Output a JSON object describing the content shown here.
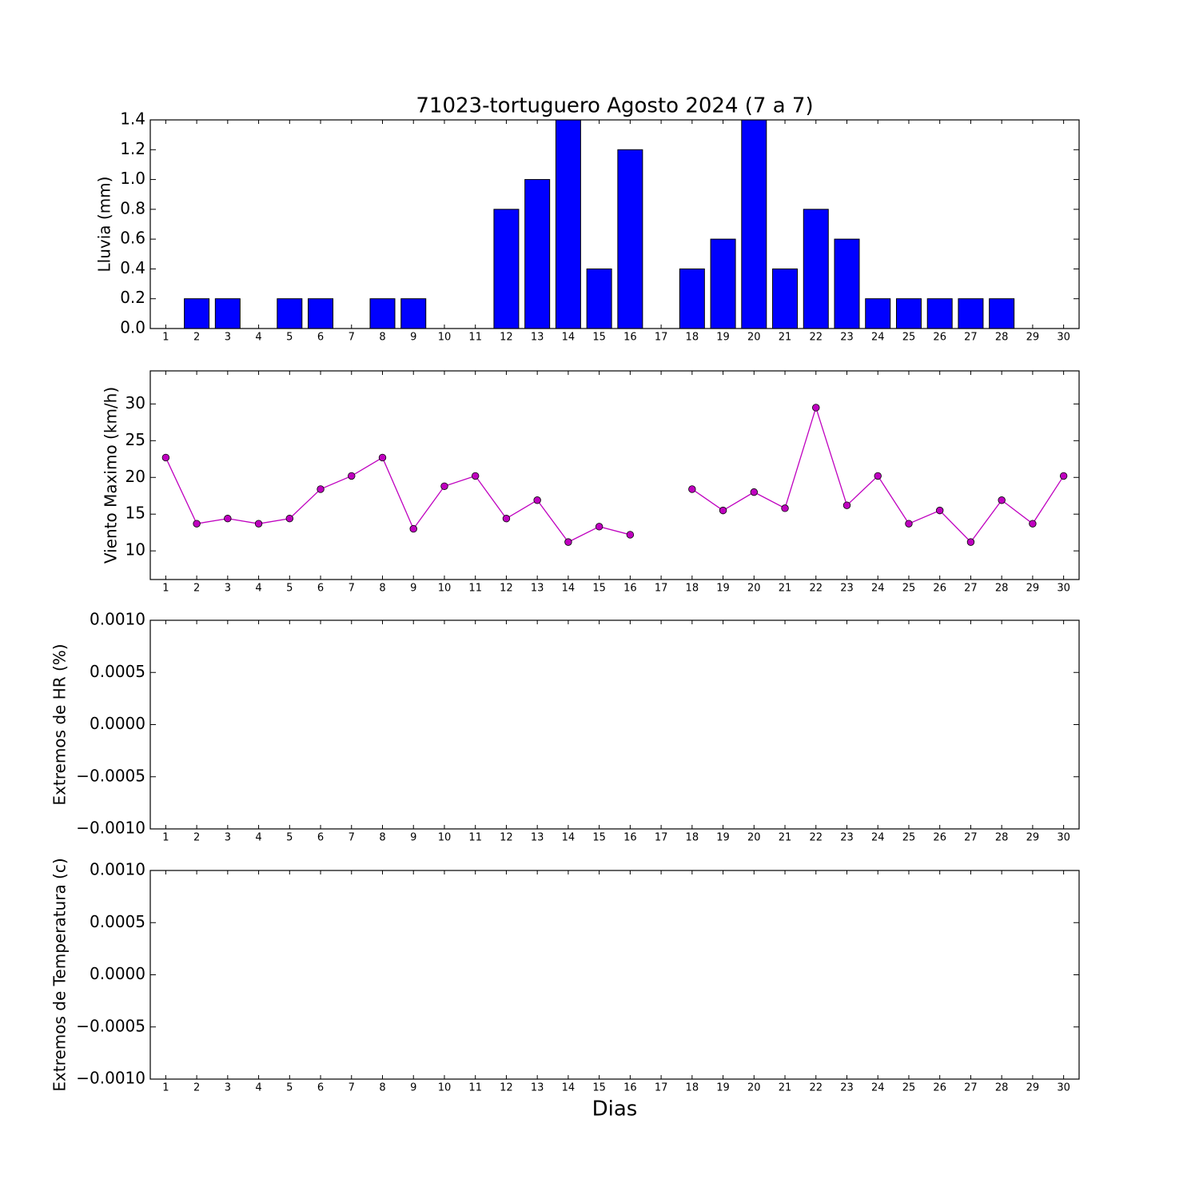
{
  "chart_data": [
    {
      "type": "bar",
      "title": "71023-tortuguero Agosto 2024  (7 a 7)",
      "y_label": "Lluvia (mm)",
      "categories": [
        "1",
        "2",
        "3",
        "4",
        "5",
        "6",
        "7",
        "8",
        "9",
        "10",
        "11",
        "12",
        "13",
        "14",
        "15",
        "16",
        "17",
        "18",
        "19",
        "20",
        "21",
        "22",
        "23",
        "24",
        "25",
        "26",
        "27",
        "28",
        "29",
        "30"
      ],
      "values": [
        0,
        0.2,
        0.2,
        null,
        0.2,
        0.2,
        0,
        0.2,
        0.2,
        0,
        0,
        0.8,
        1.0,
        1.4,
        0.4,
        1.2,
        null,
        0.4,
        0.6,
        1.4,
        0.4,
        0.8,
        0.6,
        0.2,
        0.2,
        0.2,
        0.2,
        0.2,
        0,
        null
      ],
      "color": "#0000ff",
      "ylim": [
        0,
        1.4
      ],
      "yticks": [
        {
          "value": 0,
          "label": "0.0"
        },
        {
          "value": 0.2,
          "label": "0.2"
        },
        {
          "value": 0.4,
          "label": "0.4"
        },
        {
          "value": 0.6,
          "label": "0.6"
        },
        {
          "value": 0.8,
          "label": "0.8"
        },
        {
          "value": 1,
          "label": "1.0"
        },
        {
          "value": 1.2,
          "label": "1.2"
        },
        {
          "value": 1.4,
          "label": "1.4"
        }
      ]
    },
    {
      "type": "line",
      "y_label": "Viento Maximo (km/h)",
      "categories": [
        "1",
        "2",
        "3",
        "4",
        "5",
        "6",
        "7",
        "8",
        "9",
        "10",
        "11",
        "12",
        "13",
        "14",
        "15",
        "16",
        "17",
        "18",
        "19",
        "20",
        "21",
        "22",
        "23",
        "24",
        "25",
        "26",
        "27",
        "28",
        "29",
        "30"
      ],
      "values": [
        22.7,
        13.7,
        14.4,
        13.7,
        14.4,
        18.4,
        20.2,
        22.7,
        13.0,
        18.8,
        20.2,
        14.4,
        16.9,
        11.2,
        13.3,
        12.2,
        null,
        18.4,
        15.5,
        18.0,
        15.8,
        29.5,
        16.2,
        20.2,
        13.7,
        15.5,
        11.2,
        16.9,
        13.7,
        20.2
      ],
      "color": "#bf00bf",
      "ylim": [
        6.1,
        34.5
      ],
      "yticks": [
        10,
        15,
        20,
        25,
        30
      ]
    },
    {
      "type": "line",
      "y_label": "Extremos de HR (%)",
      "categories": [
        "1",
        "2",
        "3",
        "4",
        "5",
        "6",
        "7",
        "8",
        "9",
        "10",
        "11",
        "12",
        "13",
        "14",
        "15",
        "16",
        "17",
        "18",
        "19",
        "20",
        "21",
        "22",
        "23",
        "24",
        "25",
        "26",
        "27",
        "28",
        "29",
        "30"
      ],
      "ylim": [
        -0.001,
        0.001
      ],
      "yticks": [
        {
          "value": -0.001,
          "label": "−0.0010"
        },
        {
          "value": -0.0005,
          "label": "−0.0005"
        },
        {
          "value": 0,
          "label": "0.0000"
        },
        {
          "value": 0.0005,
          "label": "0.0005"
        },
        {
          "value": 0.001,
          "label": "0.0010"
        }
      ]
    },
    {
      "type": "line",
      "y_label": "Extremos de Temperatura (c)",
      "x_label": "Dias",
      "categories": [
        "1",
        "2",
        "3",
        "4",
        "5",
        "6",
        "7",
        "8",
        "9",
        "10",
        "11",
        "12",
        "13",
        "14",
        "15",
        "16",
        "17",
        "18",
        "19",
        "20",
        "21",
        "22",
        "23",
        "24",
        "25",
        "26",
        "27",
        "28",
        "29",
        "30"
      ],
      "ylim": [
        -0.001,
        0.001
      ],
      "yticks": [
        {
          "value": -0.001,
          "label": "−0.0010"
        },
        {
          "value": -0.0005,
          "label": "−0.0005"
        },
        {
          "value": 0,
          "label": "0.0000"
        },
        {
          "value": 0.0005,
          "label": "0.0005"
        },
        {
          "value": 0.001,
          "label": "0.0010"
        }
      ]
    }
  ]
}
